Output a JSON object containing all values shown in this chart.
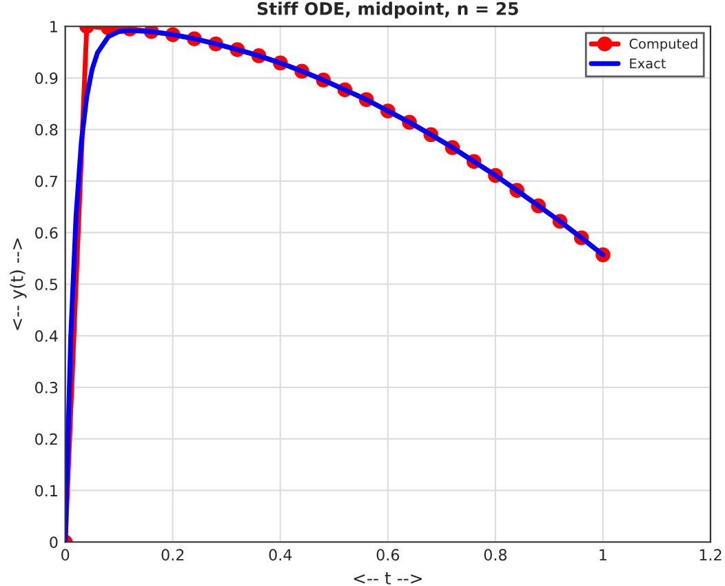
{
  "chart_data": {
    "type": "line",
    "title": "Stiff ODE, midpoint, n = 25",
    "xlabel": "<-- t -->",
    "ylabel": "<-- y(t) -->",
    "xlim": [
      0,
      1.2
    ],
    "xticks": [
      0,
      0.2,
      0.4,
      0.6,
      0.8,
      1,
      1.2
    ],
    "ylim": [
      0,
      1
    ],
    "yticks": [
      0,
      0.1,
      0.2,
      0.3,
      0.4,
      0.5,
      0.6,
      0.7,
      0.8,
      0.9,
      1
    ],
    "grid": true,
    "legend": "top right",
    "series": [
      {
        "name": "Computed",
        "color": "#ff0000",
        "marker": "circle",
        "x": [
          0,
          0.04,
          0.08,
          0.12,
          0.16,
          0.2,
          0.24,
          0.28,
          0.32,
          0.36,
          0.4,
          0.44,
          0.48,
          0.52,
          0.56,
          0.6,
          0.64,
          0.68,
          0.72,
          0.76,
          0.8,
          0.84,
          0.88,
          0.92,
          0.96,
          1
        ],
        "values": [
          0,
          1.0,
          0.997,
          0.995,
          0.99,
          0.984,
          0.976,
          0.966,
          0.955,
          0.943,
          0.929,
          0.913,
          0.896,
          0.877,
          0.858,
          0.836,
          0.814,
          0.79,
          0.765,
          0.738,
          0.711,
          0.682,
          0.652,
          0.622,
          0.59,
          0.557
        ]
      },
      {
        "name": "Exact",
        "color": "#0000ff",
        "marker": "none",
        "x": [
          0,
          0.01,
          0.02,
          0.03,
          0.04,
          0.05,
          0.06,
          0.08,
          0.1,
          0.12,
          0.16,
          0.2,
          0.24,
          0.28,
          0.32,
          0.36,
          0.4,
          0.44,
          0.48,
          0.52,
          0.56,
          0.6,
          0.64,
          0.68,
          0.72,
          0.76,
          0.8,
          0.84,
          0.88,
          0.92,
          0.96,
          1
        ],
        "values": [
          0,
          0.393,
          0.632,
          0.777,
          0.864,
          0.917,
          0.949,
          0.98,
          0.99,
          0.992,
          0.99,
          0.984,
          0.976,
          0.966,
          0.955,
          0.943,
          0.929,
          0.913,
          0.896,
          0.877,
          0.858,
          0.836,
          0.814,
          0.79,
          0.765,
          0.738,
          0.711,
          0.682,
          0.652,
          0.622,
          0.59,
          0.557
        ]
      }
    ]
  }
}
